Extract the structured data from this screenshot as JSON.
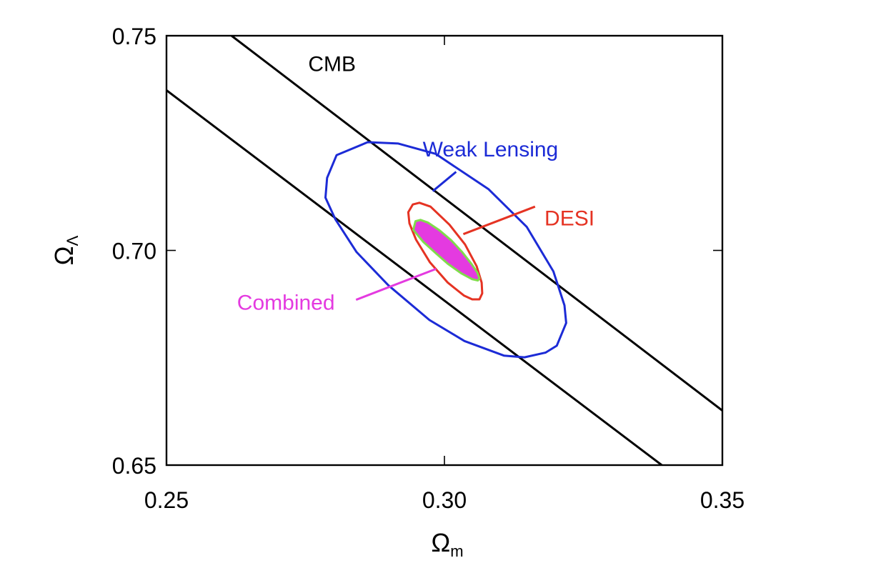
{
  "chart_data": {
    "type": "contour",
    "xlabel": {
      "symbol": "Ω",
      "subscript": "m"
    },
    "ylabel": {
      "symbol": "Ω",
      "subscript": "Λ"
    },
    "xlim": [
      0.25,
      0.35
    ],
    "ylim": [
      0.65,
      0.75
    ],
    "xticks": [
      {
        "value": 0.25,
        "label": "0.25"
      },
      {
        "value": 0.3,
        "label": "0.30"
      },
      {
        "value": 0.35,
        "label": "0.35"
      }
    ],
    "yticks": [
      {
        "value": 0.65,
        "label": "0.65"
      },
      {
        "value": 0.7,
        "label": "0.70"
      },
      {
        "value": 0.75,
        "label": "0.75"
      }
    ],
    "grid": false,
    "series": [
      {
        "name": "CMB",
        "kind": "band",
        "color": "#000000",
        "lines": [
          [
            [
              0.2617,
              0.75
            ],
            [
              0.35,
              0.6627
            ]
          ],
          [
            [
              0.25,
              0.7373
            ],
            [
              0.3391,
              0.65
            ]
          ]
        ],
        "label_at": [
          0.2755,
          0.7418
        ]
      },
      {
        "name": "Weak Lensing",
        "kind": "contour",
        "color": "#1c2bd6",
        "fill": "none",
        "points": [
          [
            0.2789,
            0.7169
          ],
          [
            0.2806,
            0.7222
          ],
          [
            0.2862,
            0.7252
          ],
          [
            0.2917,
            0.7249
          ],
          [
            0.2984,
            0.7225
          ],
          [
            0.3079,
            0.7143
          ],
          [
            0.3148,
            0.7055
          ],
          [
            0.3196,
            0.6951
          ],
          [
            0.3216,
            0.6872
          ],
          [
            0.3219,
            0.6831
          ],
          [
            0.3202,
            0.6778
          ],
          [
            0.3182,
            0.6762
          ],
          [
            0.3144,
            0.6751
          ],
          [
            0.3107,
            0.6755
          ],
          [
            0.3036,
            0.6789
          ],
          [
            0.2973,
            0.6838
          ],
          [
            0.2899,
            0.6919
          ],
          [
            0.2842,
            0.6996
          ],
          [
            0.2804,
            0.7072
          ],
          [
            0.2786,
            0.7123
          ]
        ],
        "label_at": [
          0.2961,
          0.7219
        ],
        "leader": [
          [
            0.3021,
            0.7183
          ],
          [
            0.2979,
            0.7138
          ]
        ]
      },
      {
        "name": "DESI",
        "kind": "contour",
        "color": "#e53323",
        "fill": "none",
        "points": [
          [
            0.2935,
            0.7089
          ],
          [
            0.2943,
            0.7107
          ],
          [
            0.2955,
            0.7111
          ],
          [
            0.2975,
            0.7102
          ],
          [
            0.3009,
            0.706
          ],
          [
            0.3037,
            0.7014
          ],
          [
            0.3058,
            0.6963
          ],
          [
            0.3067,
            0.6925
          ],
          [
            0.3068,
            0.69
          ],
          [
            0.3063,
            0.6886
          ],
          [
            0.305,
            0.6886
          ],
          [
            0.3035,
            0.6895
          ],
          [
            0.3006,
            0.6925
          ],
          [
            0.2974,
            0.6972
          ],
          [
            0.2949,
            0.7025
          ],
          [
            0.2937,
            0.7063
          ]
        ],
        "label_at": [
          0.318,
          0.7058
        ],
        "leader": [
          [
            0.3163,
            0.7102
          ],
          [
            0.3034,
            0.7038
          ]
        ]
      },
      {
        "name": "Combined",
        "kind": "filled-contour",
        "color": "#e43ae0",
        "outline": "#7fdc4c",
        "points": [
          [
            0.2944,
            0.7048
          ],
          [
            0.2948,
            0.7068
          ],
          [
            0.2957,
            0.7071
          ],
          [
            0.297,
            0.7065
          ],
          [
            0.299,
            0.7048
          ],
          [
            0.3012,
            0.7024
          ],
          [
            0.3032,
            0.6996
          ],
          [
            0.3049,
            0.6968
          ],
          [
            0.3059,
            0.6949
          ],
          [
            0.3063,
            0.6935
          ],
          [
            0.306,
            0.693
          ],
          [
            0.305,
            0.6933
          ],
          [
            0.303,
            0.6947
          ],
          [
            0.3006,
            0.6969
          ],
          [
            0.2984,
            0.6994
          ],
          [
            0.2962,
            0.702
          ]
        ],
        "label_at": [
          0.2627,
          0.6862
        ],
        "leader": [
          [
            0.2841,
            0.6885
          ],
          [
            0.2985,
            0.6957
          ]
        ]
      }
    ]
  }
}
